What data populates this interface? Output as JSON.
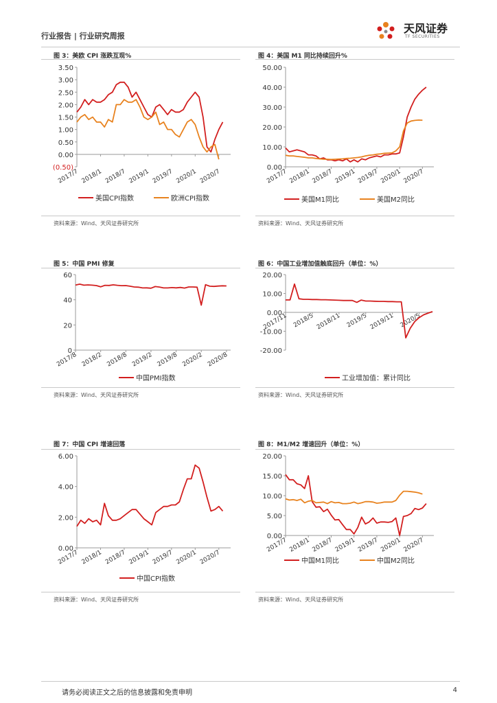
{
  "header": {
    "text": "行业报告 | 行业研究周报",
    "logo_name": "天风证券",
    "logo_sub": "TF SECURITIES"
  },
  "footer": {
    "disclaimer": "请务必阅读正文之后的信息披露和免责申明",
    "page": "4"
  },
  "colors": {
    "red": "#d21e1e",
    "orange": "#e8821e",
    "rule": "#c8c8c8"
  },
  "chart_data": [
    {
      "id": "fig3",
      "type": "line",
      "title": "图 3：美欧 CPI 涨跌互现%",
      "source": "资料来源：Wind、天风证券研究所",
      "ylim": [
        -0.5,
        3.5
      ],
      "yticks": [
        3.5,
        3.0,
        2.5,
        2.0,
        1.5,
        1.0,
        0.5,
        0.0,
        -0.5
      ],
      "ytick_labels": [
        "3.50",
        "3.00",
        "2.50",
        "2.00",
        "1.50",
        "1.00",
        "0.50",
        "0.00",
        "(0.50)"
      ],
      "neg_tick_color": "#d21e1e",
      "x_ticks": [
        {
          "at": 0,
          "label": "2017/7"
        },
        {
          "at": 6,
          "label": "2018/1"
        },
        {
          "at": 12,
          "label": "2018/7"
        },
        {
          "at": 18,
          "label": "2019/1"
        },
        {
          "at": 24,
          "label": "2019/7"
        },
        {
          "at": 30,
          "label": "2020/1"
        },
        {
          "at": 36,
          "label": "2020/7"
        }
      ],
      "xmax": 39,
      "series": [
        {
          "name": "美国CPI指数",
          "color": "#d21e1e",
          "values": [
            1.7,
            1.9,
            2.2,
            2.0,
            2.2,
            2.1,
            2.1,
            2.2,
            2.4,
            2.5,
            2.8,
            2.9,
            2.9,
            2.7,
            2.3,
            2.5,
            2.2,
            1.9,
            1.6,
            1.5,
            1.9,
            2.0,
            1.8,
            1.6,
            1.8,
            1.7,
            1.7,
            1.8,
            2.1,
            2.3,
            2.5,
            2.3,
            1.5,
            0.3,
            0.1,
            0.6,
            1.0,
            1.3
          ]
        },
        {
          "name": "欧洲CPI指数",
          "color": "#e8821e",
          "values": [
            1.3,
            1.5,
            1.6,
            1.4,
            1.5,
            1.3,
            1.3,
            1.1,
            1.4,
            1.3,
            2.0,
            2.0,
            2.2,
            2.1,
            2.1,
            2.2,
            1.9,
            1.5,
            1.4,
            1.5,
            1.7,
            1.2,
            1.3,
            1.0,
            1.0,
            0.8,
            0.7,
            1.0,
            1.3,
            1.4,
            1.2,
            0.7,
            0.3,
            0.1,
            0.3,
            0.4,
            -0.2
          ]
        }
      ]
    },
    {
      "id": "fig4",
      "type": "line",
      "title": "图 4：美国 M1 同比持续回升%",
      "source": "资料来源：Wind、天风证券研究所",
      "ylim": [
        0,
        50
      ],
      "yticks": [
        50,
        40,
        30,
        20,
        10,
        0
      ],
      "ytick_labels": [
        "50.00",
        "40.00",
        "30.00",
        "20.00",
        "10.00",
        "0.00"
      ],
      "x_ticks": [
        {
          "at": 0,
          "label": "2017/7"
        },
        {
          "at": 6,
          "label": "2018/1"
        },
        {
          "at": 12,
          "label": "2018/7"
        },
        {
          "at": 18,
          "label": "2019/1"
        },
        {
          "at": 24,
          "label": "2019/7"
        },
        {
          "at": 30,
          "label": "2020/1"
        },
        {
          "at": 36,
          "label": "2020/7"
        }
      ],
      "xmax": 39,
      "series": [
        {
          "name": "美国M1同比",
          "color": "#d21e1e",
          "values": [
            9.5,
            7.5,
            8.0,
            8.5,
            8.0,
            7.5,
            6.0,
            6.0,
            5.5,
            4.0,
            4.5,
            3.5,
            3.5,
            3.0,
            3.5,
            3.0,
            4.0,
            2.5,
            3.5,
            2.5,
            4.0,
            3.5,
            4.5,
            5.0,
            5.5,
            5.0,
            6.0,
            6.0,
            6.5,
            6.5,
            7.0,
            15.0,
            25.0,
            30.0,
            34.0,
            36.5,
            38.5,
            40.0
          ]
        },
        {
          "name": "美国M2同比",
          "color": "#e8821e",
          "values": [
            5.8,
            5.5,
            5.5,
            5.2,
            5.0,
            4.8,
            4.5,
            4.5,
            4.2,
            4.0,
            3.8,
            3.8,
            3.7,
            3.8,
            3.9,
            4.0,
            4.2,
            4.3,
            4.5,
            4.7,
            5.0,
            5.5,
            5.8,
            6.0,
            6.3,
            6.5,
            6.8,
            6.9,
            7.0,
            8.0,
            10.0,
            18.0,
            22.0,
            23.0,
            23.3,
            23.5,
            23.4
          ]
        }
      ]
    },
    {
      "id": "fig5",
      "type": "line",
      "title": "图 5：中国 PMI 修复",
      "source": "资料来源：Wind、天风证券研究所",
      "ylim": [
        0,
        60
      ],
      "yticks": [
        60,
        40,
        20,
        0
      ],
      "ytick_labels": [
        "60",
        "40",
        "20",
        "0"
      ],
      "x_ticks": [
        {
          "at": 0,
          "label": "2017/8"
        },
        {
          "at": 6,
          "label": "2018/2"
        },
        {
          "at": 12,
          "label": "2018/8"
        },
        {
          "at": 18,
          "label": "2019/2"
        },
        {
          "at": 24,
          "label": "2019/8"
        },
        {
          "at": 30,
          "label": "2020/2"
        },
        {
          "at": 36,
          "label": "2020/8"
        }
      ],
      "xmax": 37,
      "series": [
        {
          "name": "中国PMI指数",
          "color": "#d21e1e",
          "values": [
            51.7,
            52.4,
            51.6,
            51.8,
            51.6,
            51.3,
            50.3,
            51.5,
            51.4,
            51.9,
            51.5,
            51.2,
            51.3,
            50.8,
            50.2,
            50.0,
            49.4,
            49.5,
            49.2,
            50.5,
            50.1,
            49.4,
            49.4,
            49.7,
            49.5,
            49.8,
            49.3,
            50.2,
            50.2,
            50.0,
            35.7,
            52.0,
            50.8,
            50.6,
            50.9,
            51.1,
            51.0
          ]
        }
      ]
    },
    {
      "id": "fig6",
      "type": "line",
      "title": "图 6：中国工业增加值触底回升（单位：%）",
      "source": "资料来源：Wind、天风证券研究所",
      "ylim": [
        -20,
        20
      ],
      "yticks": [
        20,
        10,
        0,
        -10,
        -20
      ],
      "ytick_labels": [
        "20.00",
        "10.00",
        "0.00",
        "-10.00",
        "-20.00"
      ],
      "x_ticks": [
        {
          "at": 0,
          "label": "2017/11"
        },
        {
          "at": 6,
          "label": "2018/5"
        },
        {
          "at": 12,
          "label": "2018/11"
        },
        {
          "at": 18,
          "label": "2019/5"
        },
        {
          "at": 24,
          "label": "2019/11"
        },
        {
          "at": 30,
          "label": "2020/5"
        }
      ],
      "xmax": 33,
      "x_labels_inline": true,
      "series": [
        {
          "name": "工业增加值：累计同比",
          "color": "#d21e1e",
          "values": [
            6.6,
            6.6,
            15.0,
            7.2,
            6.9,
            6.9,
            6.8,
            6.8,
            6.7,
            6.7,
            6.6,
            6.5,
            6.4,
            6.3,
            6.3,
            6.3,
            5.3,
            6.5,
            6.0,
            6.0,
            5.9,
            5.8,
            5.8,
            5.7,
            5.7,
            5.6,
            5.6,
            -13.5,
            -8.4,
            -4.9,
            -2.8,
            -1.3,
            -0.4,
            0.4
          ]
        }
      ]
    },
    {
      "id": "fig7",
      "type": "line",
      "title": "图 7：中国 CPI 增速回落",
      "source": "资料来源：Wind、天风证券研究所",
      "ylim": [
        0,
        6
      ],
      "yticks": [
        6,
        4,
        2,
        0
      ],
      "ytick_labels": [
        "6.00",
        "4.00",
        "2.00",
        "0.00"
      ],
      "x_ticks": [
        {
          "at": 0,
          "label": "2017/7"
        },
        {
          "at": 6,
          "label": "2018/1"
        },
        {
          "at": 12,
          "label": "2018/7"
        },
        {
          "at": 18,
          "label": "2019/1"
        },
        {
          "at": 24,
          "label": "2019/7"
        },
        {
          "at": 30,
          "label": "2020/1"
        },
        {
          "at": 36,
          "label": "2020/7"
        }
      ],
      "xmax": 39,
      "series": [
        {
          "name": "中国CPI指数",
          "color": "#d21e1e",
          "values": [
            1.4,
            1.8,
            1.6,
            1.9,
            1.7,
            1.8,
            1.5,
            2.9,
            2.1,
            1.8,
            1.8,
            1.9,
            2.1,
            2.3,
            2.5,
            2.5,
            2.2,
            1.9,
            1.7,
            1.5,
            2.3,
            2.5,
            2.7,
            2.7,
            2.8,
            2.8,
            3.0,
            3.8,
            4.5,
            4.5,
            5.4,
            5.2,
            4.3,
            3.3,
            2.4,
            2.5,
            2.7,
            2.4
          ]
        }
      ]
    },
    {
      "id": "fig8",
      "type": "line",
      "title": "图 8：M1/M2 增速回升（单位：%）",
      "source": "资料来源：Wind、天风证券研究所",
      "ylim": [
        0,
        20
      ],
      "yticks": [
        20,
        15,
        10,
        5,
        0
      ],
      "ytick_labels": [
        "20.00",
        "15.00",
        "10.00",
        "5.00",
        "0.00"
      ],
      "x_ticks": [
        {
          "at": 0,
          "label": "2017/7"
        },
        {
          "at": 6,
          "label": "2018/1"
        },
        {
          "at": 12,
          "label": "2018/7"
        },
        {
          "at": 18,
          "label": "2019/1"
        },
        {
          "at": 24,
          "label": "2019/7"
        },
        {
          "at": 30,
          "label": "2020/1"
        },
        {
          "at": 36,
          "label": "2020/7"
        }
      ],
      "xmax": 39,
      "series": [
        {
          "name": "中国M1同比",
          "color": "#d21e1e",
          "values": [
            15.3,
            14.0,
            14.0,
            13.0,
            12.7,
            11.8,
            15.0,
            8.5,
            7.1,
            7.2,
            6.0,
            6.6,
            5.1,
            3.9,
            4.0,
            2.7,
            1.5,
            1.5,
            0.4,
            2.0,
            4.6,
            2.9,
            3.4,
            4.4,
            3.1,
            3.4,
            3.4,
            3.3,
            3.5,
            4.4,
            0.0,
            4.8,
            5.0,
            5.5,
            6.8,
            6.5,
            6.9,
            8.0
          ]
        },
        {
          "name": "中国M2同比",
          "color": "#e8821e",
          "values": [
            9.2,
            8.9,
            9.0,
            8.8,
            9.1,
            8.2,
            8.6,
            8.8,
            8.2,
            8.3,
            8.4,
            8.0,
            8.5,
            8.2,
            8.3,
            8.0,
            8.0,
            8.1,
            8.4,
            8.0,
            8.2,
            8.5,
            8.5,
            8.4,
            8.1,
            8.2,
            8.4,
            8.4,
            8.4,
            8.8,
            10.1,
            11.1,
            11.1,
            11.0,
            10.9,
            10.7,
            10.4
          ]
        }
      ]
    }
  ]
}
